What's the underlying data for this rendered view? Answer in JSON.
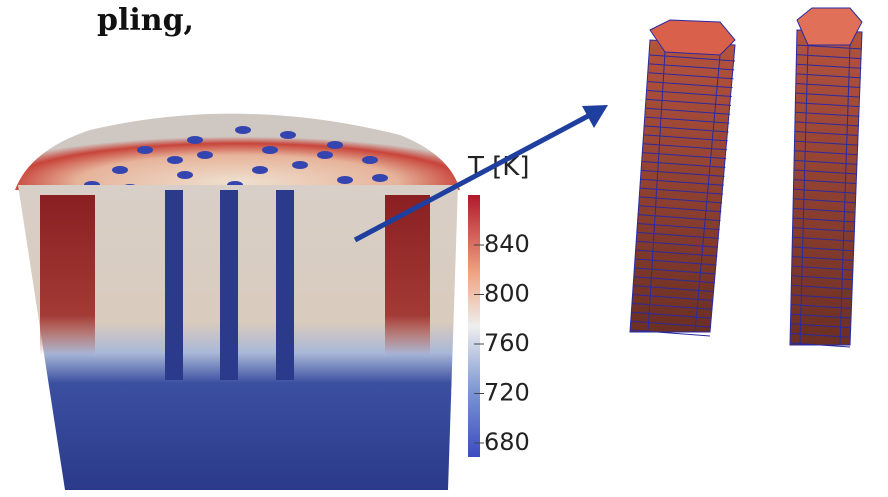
{
  "caption_fragment": "pling,",
  "colorbar": {
    "title": "T [K]",
    "ticks": [
      840,
      800,
      760,
      720,
      680
    ]
  }
}
